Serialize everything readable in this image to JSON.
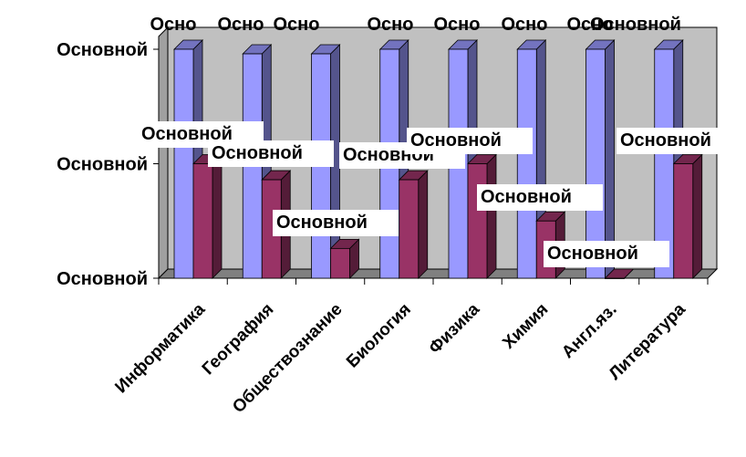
{
  "chart_data": {
    "type": "bar",
    "categories": [
      "Информатика",
      "География",
      "Обществознание",
      "Биология",
      "Физика",
      "Химия",
      "Англ.яз.",
      "Литература"
    ],
    "series": [
      {
        "values": [
          1.0,
          0.98,
          0.98,
          1.0,
          1.0,
          1.0,
          1.0,
          1.0
        ],
        "labels": [
          "Осно",
          "Осно",
          "Осно",
          "Осно",
          "Осно",
          "Осно",
          "Осно",
          "Основной"
        ],
        "color": "#9999ff"
      },
      {
        "values": [
          0.5,
          0.43,
          0.13,
          0.43,
          0.5,
          0.25,
          0.0,
          0.5
        ],
        "labels": [
          "Основной",
          "Основной",
          "Основной",
          "Основной",
          "Основной",
          "Основной",
          "Основной",
          "Основной"
        ],
        "color": "#993366"
      }
    ],
    "y_tick_labels": [
      "Основной",
      "Основной",
      "Основной"
    ],
    "ylim": [
      0,
      1
    ],
    "grid": false,
    "legend": "none",
    "chart_style": "3d-clustered-column",
    "wall_color": "#c0c0c0",
    "floor_color": "#808080"
  }
}
